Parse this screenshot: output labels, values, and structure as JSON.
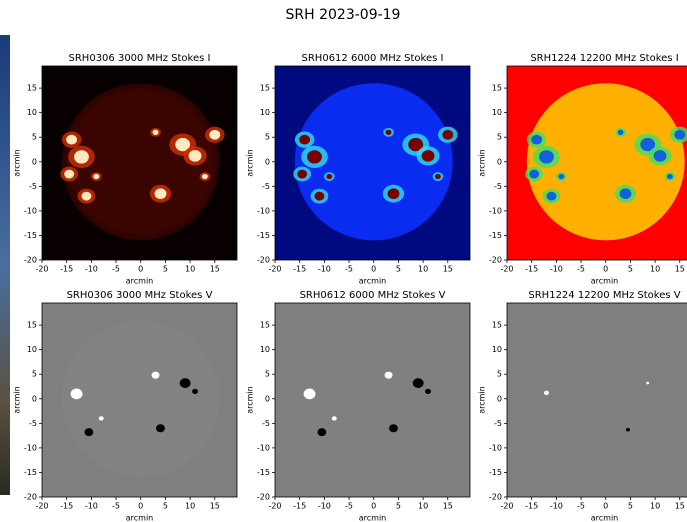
{
  "title": "SRH 2023-09-19",
  "chart_data": [
    {
      "type": "image",
      "title": "SRH0306 3000 MHz Stokes I",
      "xlabel": "arcmin",
      "ylabel": "arcmin",
      "xlim": [
        -20,
        19.5
      ],
      "ylim": [
        -20,
        19.5
      ],
      "xticks": [
        -20,
        -15,
        -10,
        -5,
        0,
        5,
        10,
        15
      ],
      "yticks": [
        -20,
        -15,
        -10,
        -5,
        0,
        5,
        10,
        15
      ],
      "colors": {
        "background": "#080000",
        "disk": "#3a0500",
        "spot": "#ffe9c0",
        "halo": "#d03000"
      }
    },
    {
      "type": "image",
      "title": "SRH0612 6000 MHz Stokes I",
      "xlabel": "arcmin",
      "ylabel": "arcmin",
      "xlim": [
        -20,
        19.5
      ],
      "ylim": [
        -20,
        19.5
      ],
      "xticks": [
        -20,
        -15,
        -10,
        -5,
        0,
        5,
        10,
        15
      ],
      "yticks": [
        -20,
        -15,
        -10,
        -5,
        0,
        5,
        10,
        15
      ],
      "colors": {
        "background": "#000a80",
        "disk": "#0a2cf0",
        "spot": "#7a0000",
        "halo": "#30e0f0"
      }
    },
    {
      "type": "image",
      "title": "SRH1224 12200 MHz Stokes I",
      "xlabel": "arcmin",
      "ylabel": "arcmin",
      "xlim": [
        -20,
        19.5
      ],
      "ylim": [
        -20,
        19.5
      ],
      "xticks": [
        -20,
        -15,
        -10,
        -5,
        0,
        5,
        10,
        15
      ],
      "yticks": [
        -20,
        -15,
        -10,
        -5,
        0,
        5,
        10,
        15
      ],
      "colors": {
        "background": "#ff0000",
        "disk": "#ffb000",
        "spot": "#1060e0",
        "halo": "#40e060"
      }
    },
    {
      "type": "image",
      "title": "SRH0306 3000 MHz Stokes V",
      "xlabel": "arcmin",
      "ylabel": "arcmin",
      "xlim": [
        -20,
        19.5
      ],
      "ylim": [
        -20,
        19.5
      ],
      "xticks": [
        -20,
        -15,
        -10,
        -5,
        0,
        5,
        10,
        15
      ],
      "yticks": [
        -20,
        -15,
        -10,
        -5,
        0,
        5,
        10,
        15
      ],
      "colors": {
        "background": "#7f7f7f",
        "disk": "#828282",
        "spot": "#000000",
        "halo": "#ffffff"
      }
    },
    {
      "type": "image",
      "title": "SRH0612 6000 MHz Stokes V",
      "xlabel": "arcmin",
      "ylabel": "arcmin",
      "xlim": [
        -20,
        19.5
      ],
      "ylim": [
        -20,
        19.5
      ],
      "xticks": [
        -20,
        -15,
        -10,
        -5,
        0,
        5,
        10,
        15
      ],
      "yticks": [
        -20,
        -15,
        -10,
        -5,
        0,
        5,
        10,
        15
      ],
      "colors": {
        "background": "#7f7f7f",
        "disk": "#808080",
        "spot": "#000000",
        "halo": "#ffffff"
      }
    },
    {
      "type": "image",
      "title": "SRH1224 12200 MHz Stokes V",
      "xlabel": "arcmin",
      "ylabel": "arcmin",
      "xlim": [
        -20,
        19.5
      ],
      "ylim": [
        -20,
        19.5
      ],
      "xticks": [
        -20,
        -15,
        -10,
        -5,
        0,
        5,
        10,
        15
      ],
      "yticks": [
        -20,
        -15,
        -10,
        -5,
        0,
        5,
        10,
        15
      ],
      "colors": {
        "background": "#7f7f7f",
        "disk": "#7f7f7f",
        "spot": "#000000",
        "halo": "#ffffff"
      }
    }
  ]
}
